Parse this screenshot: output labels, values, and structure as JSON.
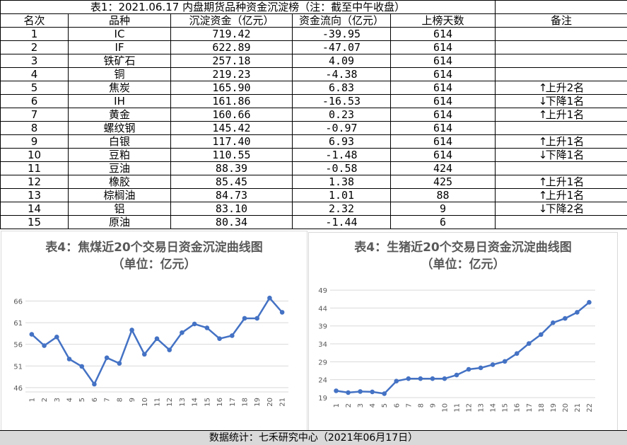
{
  "table": {
    "title": "表1：2021.06.17 内盘期货品种资金沉淀榜（注：截至中午收盘）",
    "headers": [
      "名次",
      "品种",
      "沉淀资金（亿元）",
      "资金流向（亿元）",
      "上榜天数",
      "备注"
    ],
    "rows": [
      {
        "rank": "1",
        "name": "IC",
        "amount": "719.42",
        "flow": "-39.95",
        "days": "614",
        "arrow": "",
        "note": ""
      },
      {
        "rank": "2",
        "name": "IF",
        "amount": "622.89",
        "flow": "-47.07",
        "days": "614",
        "arrow": "",
        "note": ""
      },
      {
        "rank": "3",
        "name": "铁矿石",
        "amount": "257.18",
        "flow": "4.09",
        "days": "614",
        "arrow": "",
        "note": ""
      },
      {
        "rank": "4",
        "name": "铜",
        "amount": "219.23",
        "flow": "-4.38",
        "days": "614",
        "arrow": "",
        "note": ""
      },
      {
        "rank": "5",
        "name": "焦炭",
        "amount": "165.90",
        "flow": "6.83",
        "days": "614",
        "arrow": "↑",
        "note": "上升2名"
      },
      {
        "rank": "6",
        "name": "IH",
        "amount": "161.86",
        "flow": "-16.53",
        "days": "614",
        "arrow": "↓",
        "note": "下降1名"
      },
      {
        "rank": "7",
        "name": "黄金",
        "amount": "160.66",
        "flow": "0.23",
        "days": "614",
        "arrow": "↑",
        "note": "上升1名"
      },
      {
        "rank": "8",
        "name": "螺纹钢",
        "amount": "145.42",
        "flow": "-0.97",
        "days": "614",
        "arrow": "",
        "note": ""
      },
      {
        "rank": "9",
        "name": "白银",
        "amount": "117.40",
        "flow": "6.93",
        "days": "614",
        "arrow": "↑",
        "note": "上升1名"
      },
      {
        "rank": "10",
        "name": "豆粕",
        "amount": "110.55",
        "flow": "-1.48",
        "days": "614",
        "arrow": "↓",
        "note": "下降1名"
      },
      {
        "rank": "11",
        "name": "豆油",
        "amount": "88.39",
        "flow": "-0.58",
        "days": "424",
        "arrow": "",
        "note": ""
      },
      {
        "rank": "12",
        "name": "橡胶",
        "amount": "85.45",
        "flow": "1.38",
        "days": "425",
        "arrow": "↑",
        "note": "上升1名"
      },
      {
        "rank": "13",
        "name": "棕榈油",
        "amount": "84.73",
        "flow": "1.01",
        "days": "88",
        "arrow": "↑",
        "note": "上升1名"
      },
      {
        "rank": "14",
        "name": "铝",
        "amount": "83.10",
        "flow": "2.32",
        "days": "9",
        "arrow": "↓",
        "note": "下降2名"
      },
      {
        "rank": "15",
        "name": "原油",
        "amount": "80.34",
        "flow": "-1.44",
        "days": "6",
        "arrow": "",
        "note": ""
      }
    ]
  },
  "footer": "数据统计：七禾研究中心（2021年06月17日）",
  "colors": {
    "line": "#4472c4",
    "grid": "#d9d9d9",
    "axis_text": "#595959",
    "title": "#595959",
    "footer_bg": "#d9d9d9"
  },
  "chart_data": [
    {
      "type": "line",
      "title": "表4：焦煤近20个交易日资金沉淀曲线图",
      "subtitle": "（单位：亿元）",
      "x": [
        "1",
        "2",
        "3",
        "4",
        "5",
        "6",
        "7",
        "8",
        "9",
        "10",
        "11",
        "12",
        "13",
        "14",
        "15",
        "16",
        "17",
        "18",
        "19",
        "20",
        "21"
      ],
      "values": [
        58.3,
        55.7,
        57.7,
        52.6,
        50.9,
        46.8,
        52.9,
        51.6,
        59.3,
        53.7,
        57.3,
        54.7,
        58.7,
        60.7,
        59.8,
        57.3,
        58.0,
        62.0,
        62.0,
        66.7,
        63.4
      ],
      "yticks": [
        46,
        51,
        56,
        61,
        66
      ],
      "ylim": [
        45,
        70
      ],
      "grid": true,
      "legend": "none"
    },
    {
      "type": "line",
      "title": "表4：生猪近20个交易日资金沉淀曲线图",
      "subtitle": "（单位：亿元）",
      "x": [
        "1",
        "2",
        "3",
        "4",
        "5",
        "6",
        "7",
        "8",
        "9",
        "10",
        "11",
        "12",
        "13",
        "14",
        "15",
        "16",
        "17",
        "18",
        "19",
        "20",
        "21",
        "22"
      ],
      "values": [
        20.9,
        20.4,
        20.7,
        20.6,
        20.1,
        23.6,
        24.3,
        24.3,
        24.3,
        24.3,
        25.3,
        26.9,
        27.3,
        28.2,
        29.1,
        31.3,
        34.1,
        36.6,
        39.9,
        41.1,
        42.8,
        45.6
      ],
      "yticks": [
        19,
        24,
        29,
        34,
        39,
        44,
        49
      ],
      "ylim": [
        19,
        50
      ],
      "grid": true,
      "legend": "none"
    }
  ]
}
